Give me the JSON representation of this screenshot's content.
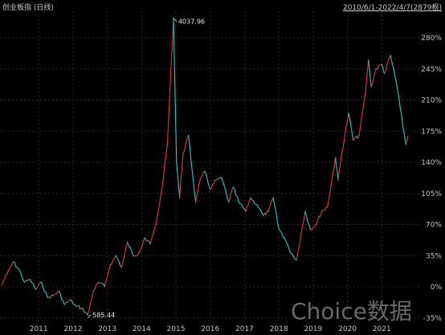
{
  "header": {
    "title": "创业板指 (日线)",
    "range": "2010/6/1-2022/4/7(2879根)"
  },
  "watermark": "Choice数据",
  "colors": {
    "up": "#e03a3a",
    "down": "#35c2c8",
    "grid": "#2a2a2a",
    "neg": "#3ecf5a"
  },
  "chart_data": {
    "type": "line",
    "title": "创业板指 (日线)",
    "x_ticks": [
      "2011",
      "2012",
      "2013",
      "2014",
      "2015",
      "2016",
      "2017",
      "2018",
      "2019",
      "2020",
      "2021"
    ],
    "y_ticks": [
      "280%",
      "245%",
      "210%",
      "175%",
      "140%",
      "105%",
      "70%",
      "35%",
      "0%",
      "-35%"
    ],
    "ylim": [
      -35,
      290
    ],
    "grid": true,
    "annotations": [
      {
        "label": "4037.96",
        "x": "2015-06-05",
        "y": 302
      },
      {
        "label": "585.44",
        "x": "2012-12-04",
        "y": -35
      }
    ],
    "series": [
      {
        "x": [
          "2010-06-01",
          "2010-08-01",
          "2010-10-01",
          "2010-12-01",
          "2011-02-01",
          "2011-04-01",
          "2011-06-01",
          "2011-08-01",
          "2011-10-01",
          "2011-12-01",
          "2012-02-01",
          "2012-04-01",
          "2012-06-01",
          "2012-08-01",
          "2012-10-01",
          "2012-12-04",
          "2013-02-01",
          "2013-04-01",
          "2013-06-01",
          "2013-08-01",
          "2013-10-01",
          "2013-12-01",
          "2014-02-01",
          "2014-04-01",
          "2014-06-01",
          "2014-08-01",
          "2014-10-01",
          "2014-12-01",
          "2015-02-01",
          "2015-04-01",
          "2015-06-05",
          "2015-07-08",
          "2015-08-10",
          "2015-09-15",
          "2015-11-12",
          "2016-01-28",
          "2016-03-01",
          "2016-05-01",
          "2016-07-01",
          "2016-09-01",
          "2016-11-01",
          "2017-01-15",
          "2017-03-01",
          "2017-05-01",
          "2017-07-15",
          "2017-09-01",
          "2017-11-15",
          "2018-01-15",
          "2018-03-15",
          "2018-05-01",
          "2018-07-01",
          "2018-09-01",
          "2018-10-19",
          "2019-01-04",
          "2019-04-08",
          "2019-06-01",
          "2019-08-01",
          "2019-10-01",
          "2019-12-01",
          "2020-02-24",
          "2020-03-23",
          "2020-05-01",
          "2020-07-13",
          "2020-09-01",
          "2020-11-01",
          "2021-01-05",
          "2021-02-10",
          "2021-03-10",
          "2021-05-01",
          "2021-07-01",
          "2021-08-01",
          "2021-10-01",
          "2021-12-03",
          "2022-01-15",
          "2022-03-15",
          "2022-04-07"
        ],
        "values": [
          2,
          15,
          28,
          20,
          5,
          8,
          -3,
          5,
          -12,
          -10,
          -5,
          -20,
          -15,
          -22,
          -24,
          -32,
          -5,
          5,
          0,
          25,
          35,
          22,
          50,
          35,
          38,
          55,
          48,
          70,
          110,
          160,
          302,
          140,
          100,
          150,
          170,
          95,
          115,
          130,
          110,
          120,
          122,
          95,
          112,
          95,
          85,
          100,
          92,
          80,
          85,
          100,
          65,
          55,
          42,
          30,
          85,
          65,
          70,
          85,
          90,
          145,
          120,
          150,
          195,
          165,
          170,
          215,
          255,
          225,
          245,
          250,
          240,
          260,
          230,
          200,
          160,
          170
        ]
      }
    ]
  }
}
